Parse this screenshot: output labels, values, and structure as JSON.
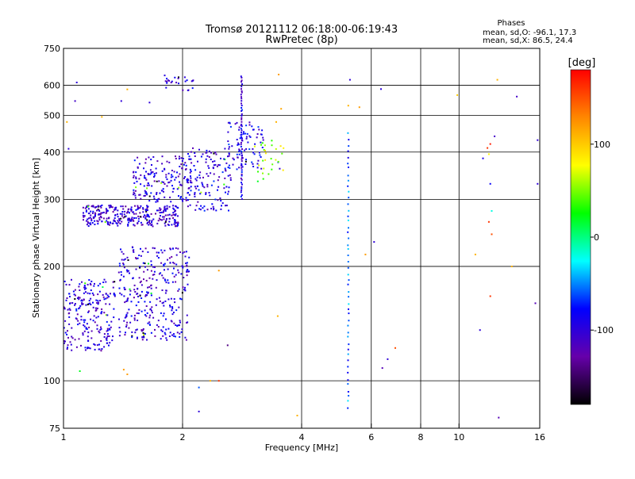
{
  "chart_data": {
    "type": "scatter",
    "title": "Tromsø 20121112 06:18:00-06:19:43",
    "subtitle": "RwPretec (8p)",
    "xlabel": "Frequency [MHz]",
    "ylabel": "Stationary phase Virtual Height [km]",
    "x_scale": "log",
    "y_scale": "log",
    "xlim": [
      1,
      16
    ],
    "ylim": [
      75,
      750
    ],
    "x_ticks": [
      1,
      2,
      4,
      6,
      8,
      10,
      16
    ],
    "y_ticks": [
      75,
      100,
      200,
      300,
      400,
      500,
      600,
      750
    ],
    "grid": true,
    "stats": {
      "heading": "Phases",
      "line_o": "mean, sd,O: -96.1, 17.3",
      "line_x": "mean, sd,X: 86.5, 24.4"
    },
    "colorbar": {
      "label": "[deg]",
      "range": [
        -180,
        180
      ],
      "ticks": [
        100,
        0,
        -100
      ],
      "colors": [
        "#ff0000",
        "#ff8800",
        "#ffff00",
        "#00ff00",
        "#00ffff",
        "#0000ff",
        "#6600aa",
        "#000000"
      ]
    },
    "series": [
      {
        "clusters": [
          {
            "f": [
              1.0,
              1.35
            ],
            "h": [
              120,
              185
            ],
            "n": 230,
            "phase": -100
          },
          {
            "f": [
              1.38,
              2.08
            ],
            "h": [
              128,
              225
            ],
            "n": 330,
            "phase": -100
          },
          {
            "f": [
              1.12,
              1.95
            ],
            "h": [
              255,
              290
            ],
            "n": 320,
            "phase": -105
          },
          {
            "f": [
              1.5,
              2.1
            ],
            "h": [
              295,
              390
            ],
            "n": 170,
            "phase": -100
          },
          {
            "f": [
              2.05,
              2.65
            ],
            "h": [
              280,
              410
            ],
            "n": 140,
            "phase": -95
          },
          {
            "f": [
              2.6,
              3.2
            ],
            "h": [
              360,
              480
            ],
            "n": 90,
            "phase": -90
          },
          {
            "f": [
              1.8,
              2.15
            ],
            "h": [
              580,
              640
            ],
            "n": 25,
            "phase": -100
          },
          {
            "f": [
              3.1,
              3.6
            ],
            "h": [
              350,
              430
            ],
            "n": 25,
            "phase": 60
          }
        ],
        "lines": [
          {
            "f": 2.82,
            "h": [
              300,
              640
            ],
            "n": 60,
            "phase": -95
          },
          {
            "f": 5.25,
            "h": [
              84,
              460
            ],
            "n": 48,
            "phase": -60
          }
        ],
        "points": [
          {
            "f": 3.1,
            "h": 335,
            "phase": 20
          },
          {
            "f": 3.2,
            "h": 340,
            "phase": 30
          },
          {
            "f": 3.3,
            "h": 350,
            "phase": 40
          },
          {
            "f": 3.36,
            "h": 360,
            "phase": 35
          },
          {
            "f": 3.45,
            "h": 480,
            "phase": 110
          },
          {
            "f": 3.55,
            "h": 520,
            "phase": 115
          },
          {
            "f": 3.5,
            "h": 640,
            "phase": 120
          },
          {
            "f": 3.48,
            "h": 148,
            "phase": 110
          },
          {
            "f": 1.42,
            "h": 107,
            "phase": 120
          },
          {
            "f": 1.45,
            "h": 104,
            "phase": 120
          },
          {
            "f": 1.1,
            "h": 106,
            "phase": 20
          },
          {
            "f": 2.47,
            "h": 195,
            "phase": 120
          },
          {
            "f": 2.47,
            "h": 100,
            "phase": 160
          },
          {
            "f": 2.6,
            "h": 124,
            "phase": -140
          },
          {
            "f": 2.2,
            "h": 83,
            "phase": -100
          },
          {
            "f": 2.2,
            "h": 96,
            "phase": -60
          },
          {
            "f": 3.9,
            "h": 81,
            "phase": 110
          },
          {
            "f": 5.3,
            "h": 620,
            "phase": -100
          },
          {
            "f": 5.25,
            "h": 530,
            "phase": 110
          },
          {
            "f": 5.6,
            "h": 525,
            "phase": 120
          },
          {
            "f": 5.8,
            "h": 215,
            "phase": 120
          },
          {
            "f": 6.1,
            "h": 232,
            "phase": -100
          },
          {
            "f": 6.35,
            "h": 586,
            "phase": -100
          },
          {
            "f": 6.4,
            "h": 108,
            "phase": -120
          },
          {
            "f": 6.6,
            "h": 114,
            "phase": -100
          },
          {
            "f": 6.9,
            "h": 122,
            "phase": 150
          },
          {
            "f": 9.9,
            "h": 565,
            "phase": 100
          },
          {
            "f": 11.0,
            "h": 215,
            "phase": 110
          },
          {
            "f": 11.3,
            "h": 136,
            "phase": -100
          },
          {
            "f": 11.5,
            "h": 385,
            "phase": -90
          },
          {
            "f": 11.8,
            "h": 410,
            "phase": 160
          },
          {
            "f": 12.0,
            "h": 420,
            "phase": 170
          },
          {
            "f": 11.9,
            "h": 395,
            "phase": 80
          },
          {
            "f": 12.0,
            "h": 330,
            "phase": -80
          },
          {
            "f": 12.1,
            "h": 280,
            "phase": -20
          },
          {
            "f": 12.3,
            "h": 440,
            "phase": -110
          },
          {
            "f": 12.5,
            "h": 620,
            "phase": 110
          },
          {
            "f": 11.9,
            "h": 262,
            "phase": 160
          },
          {
            "f": 12.1,
            "h": 243,
            "phase": 150
          },
          {
            "f": 12.0,
            "h": 167,
            "phase": 160
          },
          {
            "f": 12.6,
            "h": 80,
            "phase": -120
          },
          {
            "f": 13.6,
            "h": 200,
            "phase": 110
          },
          {
            "f": 14.0,
            "h": 560,
            "phase": -110
          },
          {
            "f": 15.8,
            "h": 330,
            "phase": -100
          },
          {
            "f": 15.8,
            "h": 430,
            "phase": -100
          },
          {
            "f": 15.6,
            "h": 160,
            "phase": -120
          },
          {
            "f": 1.03,
            "h": 408,
            "phase": -100
          },
          {
            "f": 1.07,
            "h": 545,
            "phase": -110
          },
          {
            "f": 1.08,
            "h": 610,
            "phase": -100
          },
          {
            "f": 1.25,
            "h": 495,
            "phase": 110
          },
          {
            "f": 1.4,
            "h": 545,
            "phase": -100
          },
          {
            "f": 1.45,
            "h": 585,
            "phase": 110
          },
          {
            "f": 1.02,
            "h": 480,
            "phase": 110
          },
          {
            "f": 1.65,
            "h": 540,
            "phase": -100
          },
          {
            "f": 2.35,
            "h": 100,
            "phase": 110
          }
        ]
      }
    ]
  }
}
